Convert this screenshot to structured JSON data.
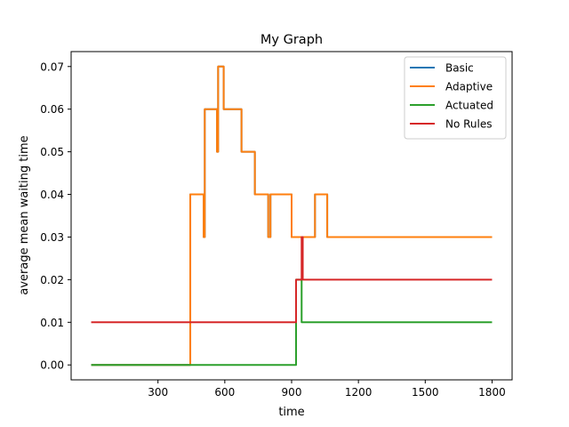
{
  "chart_data": {
    "type": "line",
    "title": "My Graph",
    "xlabel": "time",
    "ylabel": "average mean waiting time",
    "xlim": [
      -90,
      1890
    ],
    "ylim": [
      -0.0035,
      0.0735
    ],
    "xticks": [
      300,
      600,
      900,
      1200,
      1500,
      1800
    ],
    "yticks": [
      0.0,
      0.01,
      0.02,
      0.03,
      0.04,
      0.05,
      0.06,
      0.07
    ],
    "ytick_labels": [
      "0.00",
      "0.01",
      "0.02",
      "0.03",
      "0.04",
      "0.05",
      "0.06",
      "0.07"
    ],
    "grid": false,
    "legend_position": "top-right",
    "series": [
      {
        "name": "Basic",
        "color": "#1f77b4",
        "x": [
          0,
          445,
          445,
          505,
          505,
          510,
          510,
          565,
          565,
          570,
          570,
          595,
          595,
          675,
          675,
          735,
          735,
          795,
          795,
          805,
          805,
          815,
          815,
          900,
          900,
          1005,
          1005,
          1060,
          1060,
          1800
        ],
        "y": [
          0.0,
          0.0,
          0.04,
          0.04,
          0.03,
          0.03,
          0.06,
          0.06,
          0.05,
          0.05,
          0.07,
          0.07,
          0.06,
          0.06,
          0.05,
          0.05,
          0.04,
          0.04,
          0.03,
          0.03,
          0.04,
          0.04,
          0.04,
          0.04,
          0.03,
          0.03,
          0.04,
          0.04,
          0.03,
          0.03
        ]
      },
      {
        "name": "Adaptive",
        "color": "#ff7f0e",
        "x": [
          0,
          445,
          445,
          505,
          505,
          510,
          510,
          565,
          565,
          570,
          570,
          595,
          595,
          675,
          675,
          735,
          735,
          795,
          795,
          805,
          805,
          815,
          815,
          900,
          900,
          1005,
          1005,
          1060,
          1060,
          1800
        ],
        "y": [
          0.0,
          0.0,
          0.04,
          0.04,
          0.03,
          0.03,
          0.06,
          0.06,
          0.05,
          0.05,
          0.07,
          0.07,
          0.06,
          0.06,
          0.05,
          0.05,
          0.04,
          0.04,
          0.03,
          0.03,
          0.04,
          0.04,
          0.04,
          0.04,
          0.03,
          0.03,
          0.04,
          0.04,
          0.03,
          0.03
        ]
      },
      {
        "name": "Actuated",
        "color": "#2ca02c",
        "x": [
          0,
          920,
          920,
          945,
          945,
          1800
        ],
        "y": [
          0.0,
          0.0,
          0.02,
          0.02,
          0.01,
          0.01
        ]
      },
      {
        "name": "No Rules",
        "color": "#d62728",
        "x": [
          0,
          920,
          920,
          945,
          945,
          950,
          950,
          1800
        ],
        "y": [
          0.01,
          0.01,
          0.02,
          0.02,
          0.03,
          0.03,
          0.02,
          0.02
        ]
      }
    ]
  }
}
